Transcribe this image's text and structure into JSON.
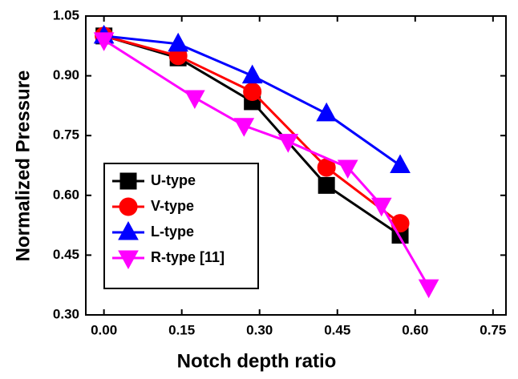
{
  "chart_data": {
    "type": "line",
    "xlabel": "Notch depth ratio",
    "ylabel": "Normalized Pressure",
    "xlim": [
      -0.035,
      0.775
    ],
    "ylim": [
      0.3,
      1.05
    ],
    "xticks": [
      {
        "value": 0,
        "label": "0.00"
      },
      0.15,
      {
        "value": 0.3,
        "label": "0.30"
      },
      0.45,
      {
        "value": 0.6,
        "label": "0.60"
      },
      0.75
    ],
    "yticks": [
      {
        "value": 0.3,
        "label": "0.30"
      },
      0.45,
      {
        "value": 0.6,
        "label": "0.60"
      },
      0.75,
      {
        "value": 0.9,
        "label": "0.90"
      },
      1.05
    ],
    "legend": "lower left",
    "series": [
      {
        "name": "U-type",
        "color": "#000000",
        "marker": "square",
        "x": [
          0,
          0.143,
          0.286,
          0.429,
          0.571
        ],
        "values": [
          1.0,
          0.945,
          0.835,
          0.625,
          0.5
        ]
      },
      {
        "name": "V-type",
        "color": "#ff0000",
        "marker": "circle",
        "x": [
          0,
          0.143,
          0.286,
          0.429,
          0.571
        ],
        "values": [
          1.0,
          0.95,
          0.86,
          0.67,
          0.53
        ]
      },
      {
        "name": "L-type",
        "color": "#0000ff",
        "marker": "triangle-up",
        "x": [
          0,
          0.143,
          0.286,
          0.429,
          0.571
        ],
        "values": [
          1.0,
          0.98,
          0.9,
          0.805,
          0.675
        ]
      },
      {
        "name": "R-type [11]",
        "color": "#ff00ff",
        "marker": "triangle-down",
        "x": [
          0,
          0.175,
          0.27,
          0.355,
          0.47,
          0.535,
          0.626
        ],
        "values": [
          0.99,
          0.845,
          0.775,
          0.735,
          0.67,
          0.575,
          0.37
        ]
      }
    ]
  }
}
